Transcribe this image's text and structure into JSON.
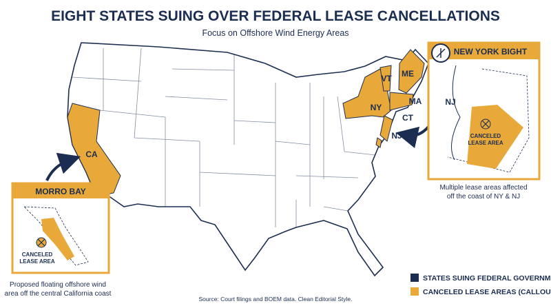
{
  "header": {
    "title": "EIGHT STATES SUING OVER FEDERAL LEASE CANCELLATIONS",
    "subtitle": "Focus on Offshore Wind Energy Areas"
  },
  "map": {
    "state_labels": [
      "CA",
      "VT",
      "ME",
      "NY",
      "MA",
      "CT",
      "NJ"
    ]
  },
  "callouts": [
    {
      "title": "MORRO BAY",
      "area_label": [
        "CANCELED",
        "LEASE AREA"
      ],
      "caption": [
        "Proposed floating offshore wind",
        "area off the central California coast"
      ]
    },
    {
      "title": "NEW YORK BIGHT",
      "state_label": "NJ",
      "area_label": [
        "CANCELED",
        "LEASE AREA"
      ],
      "caption": [
        "Multiple lease areas affected",
        "off the coast of NY & NJ"
      ]
    }
  ],
  "legend": [
    {
      "label": "STATES SUING FEDERAL GOVERNMENT"
    },
    {
      "label": "CANCELED LEASE AREAS (CALLOUTS)"
    }
  ],
  "source": "Source: Court filings and BOEM data. Clean Editorial Style."
}
